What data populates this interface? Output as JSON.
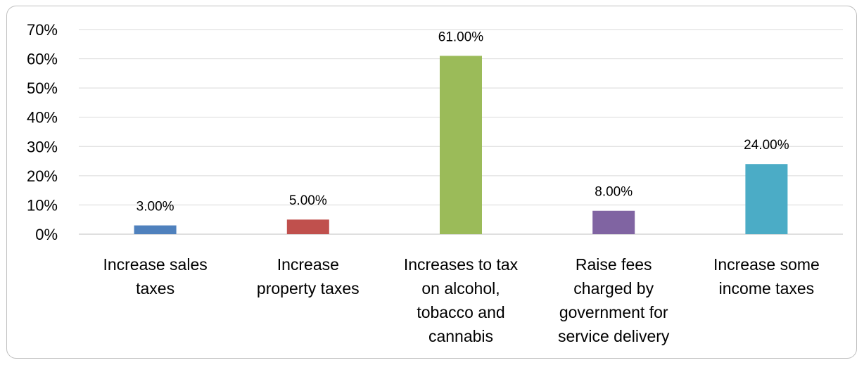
{
  "chart_data": {
    "type": "bar",
    "title": "",
    "xlabel": "",
    "ylabel": "",
    "ylim": [
      0,
      70
    ],
    "y_ticks": [
      "0%",
      "10%",
      "20%",
      "30%",
      "40%",
      "50%",
      "60%",
      "70%"
    ],
    "y_tick_values": [
      0,
      10,
      20,
      30,
      40,
      50,
      60,
      70
    ],
    "grid": true,
    "legend": "none",
    "categories": [
      [
        "Increase sales",
        "taxes"
      ],
      [
        "Increase",
        "property taxes"
      ],
      [
        "Increases to tax",
        "on alcohol,",
        "tobacco and",
        "cannabis"
      ],
      [
        "Raise fees",
        "charged by",
        "government for",
        "service delivery"
      ],
      [
        "Increase some",
        "income taxes"
      ]
    ],
    "values": [
      3.0,
      5.0,
      61.0,
      8.0,
      24.0
    ],
    "data_labels": [
      "3.00%",
      "5.00%",
      "61.00%",
      "8.00%",
      "24.00%"
    ],
    "colors": [
      "#4f81bd",
      "#c0504d",
      "#9bbb59",
      "#8064a2",
      "#4bacc6"
    ]
  }
}
